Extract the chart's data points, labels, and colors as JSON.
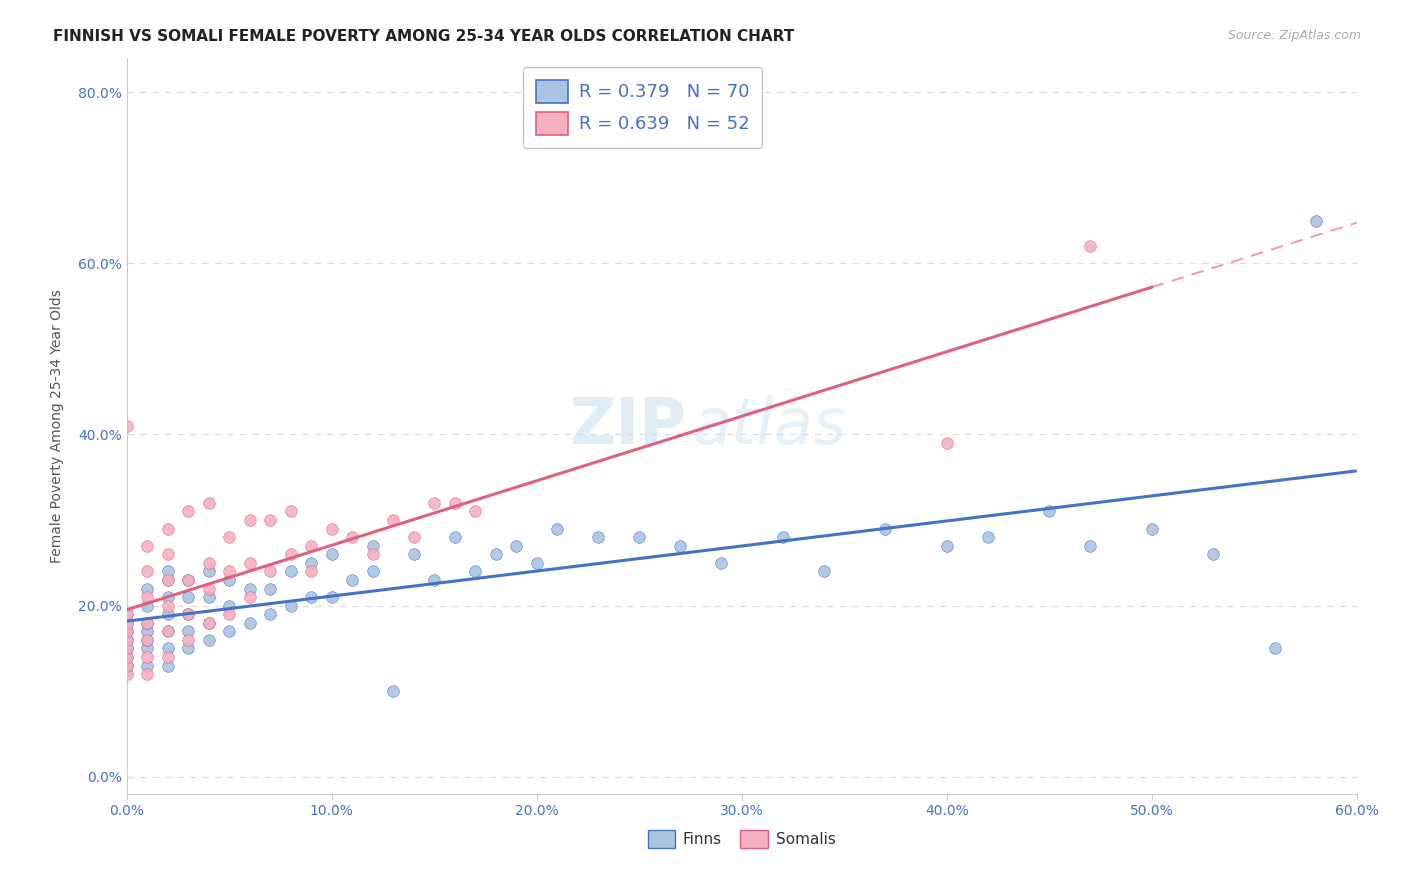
{
  "title": "FINNISH VS SOMALI FEMALE POVERTY AMONG 25-34 YEAR OLDS CORRELATION CHART",
  "source": "Source: ZipAtlas.com",
  "ylabel": "Female Poverty Among 25-34 Year Olds",
  "xmin": 0.0,
  "xmax": 0.6,
  "ymin": -0.02,
  "ymax": 0.84,
  "finn_R": 0.379,
  "finn_N": 70,
  "somali_R": 0.639,
  "somali_N": 52,
  "finn_color": "#aac4e2",
  "somali_color": "#f5afc0",
  "finn_line_color": "#4472c4",
  "somali_line_color": "#e06080",
  "legend_label_color": "#4472c4",
  "watermark_zip": "ZIP",
  "watermark_atlas": "atlas",
  "background_color": "#ffffff",
  "finn_x": [
    0.0,
    0.0,
    0.0,
    0.0,
    0.0,
    0.0,
    0.0,
    0.01,
    0.01,
    0.01,
    0.01,
    0.01,
    0.01,
    0.01,
    0.02,
    0.02,
    0.02,
    0.02,
    0.02,
    0.02,
    0.02,
    0.03,
    0.03,
    0.03,
    0.03,
    0.03,
    0.04,
    0.04,
    0.04,
    0.04,
    0.05,
    0.05,
    0.05,
    0.06,
    0.06,
    0.07,
    0.07,
    0.08,
    0.08,
    0.09,
    0.09,
    0.1,
    0.1,
    0.11,
    0.12,
    0.12,
    0.13,
    0.14,
    0.15,
    0.16,
    0.17,
    0.18,
    0.19,
    0.2,
    0.21,
    0.23,
    0.25,
    0.27,
    0.29,
    0.32,
    0.34,
    0.37,
    0.4,
    0.42,
    0.45,
    0.47,
    0.5,
    0.53,
    0.56,
    0.58
  ],
  "finn_y": [
    0.13,
    0.14,
    0.15,
    0.16,
    0.17,
    0.18,
    0.19,
    0.13,
    0.15,
    0.16,
    0.17,
    0.18,
    0.2,
    0.22,
    0.13,
    0.15,
    0.17,
    0.19,
    0.21,
    0.23,
    0.24,
    0.15,
    0.17,
    0.19,
    0.21,
    0.23,
    0.16,
    0.18,
    0.21,
    0.24,
    0.17,
    0.2,
    0.23,
    0.18,
    0.22,
    0.19,
    0.22,
    0.2,
    0.24,
    0.21,
    0.25,
    0.21,
    0.26,
    0.23,
    0.24,
    0.27,
    0.1,
    0.26,
    0.23,
    0.28,
    0.24,
    0.26,
    0.27,
    0.25,
    0.29,
    0.28,
    0.28,
    0.27,
    0.25,
    0.28,
    0.24,
    0.29,
    0.27,
    0.28,
    0.31,
    0.27,
    0.29,
    0.26,
    0.15,
    0.65
  ],
  "somali_x": [
    0.0,
    0.0,
    0.0,
    0.0,
    0.0,
    0.0,
    0.0,
    0.0,
    0.0,
    0.01,
    0.01,
    0.01,
    0.01,
    0.01,
    0.01,
    0.01,
    0.02,
    0.02,
    0.02,
    0.02,
    0.02,
    0.02,
    0.03,
    0.03,
    0.03,
    0.03,
    0.04,
    0.04,
    0.04,
    0.04,
    0.05,
    0.05,
    0.05,
    0.06,
    0.06,
    0.06,
    0.07,
    0.07,
    0.08,
    0.08,
    0.09,
    0.09,
    0.1,
    0.11,
    0.12,
    0.13,
    0.14,
    0.15,
    0.16,
    0.17,
    0.4,
    0.47
  ],
  "somali_y": [
    0.12,
    0.13,
    0.14,
    0.15,
    0.16,
    0.17,
    0.18,
    0.19,
    0.41,
    0.12,
    0.14,
    0.16,
    0.18,
    0.21,
    0.24,
    0.27,
    0.14,
    0.17,
    0.2,
    0.23,
    0.26,
    0.29,
    0.16,
    0.19,
    0.23,
    0.31,
    0.18,
    0.22,
    0.25,
    0.32,
    0.19,
    0.24,
    0.28,
    0.21,
    0.25,
    0.3,
    0.24,
    0.3,
    0.26,
    0.31,
    0.24,
    0.27,
    0.29,
    0.28,
    0.26,
    0.3,
    0.28,
    0.32,
    0.32,
    0.31,
    0.39,
    0.62
  ]
}
